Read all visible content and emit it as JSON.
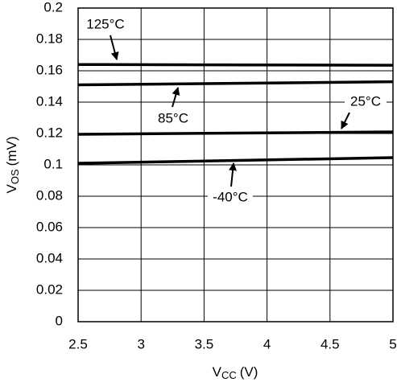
{
  "chart_data": {
    "type": "line",
    "x_label": [
      "V",
      "CC",
      "(V)"
    ],
    "y_label": [
      "V",
      "OS",
      "(mV)"
    ],
    "xlim": [
      2.5,
      5
    ],
    "xticks": [
      2.5,
      3,
      3.5,
      4,
      4.5,
      5
    ],
    "ylim": [
      0,
      0.2
    ],
    "yticks": [
      0,
      0.02,
      0.04,
      0.06,
      0.08,
      0.1,
      0.12,
      0.14,
      0.16,
      0.18,
      0.2
    ],
    "grid": true,
    "series": [
      {
        "name": "125°C",
        "color": "#000000",
        "x": [
          2.5,
          5
        ],
        "values": [
          0.164,
          0.1635
        ]
      },
      {
        "name": "85°C",
        "color": "#000000",
        "x": [
          2.5,
          5
        ],
        "values": [
          0.151,
          0.153
        ]
      },
      {
        "name": "25°C",
        "color": "#000000",
        "x": [
          2.5,
          5
        ],
        "values": [
          0.1195,
          0.121
        ]
      },
      {
        "name": "-40°C",
        "color": "#000000",
        "x": [
          2.5,
          5
        ],
        "values": [
          0.101,
          0.1046
        ]
      }
    ]
  }
}
